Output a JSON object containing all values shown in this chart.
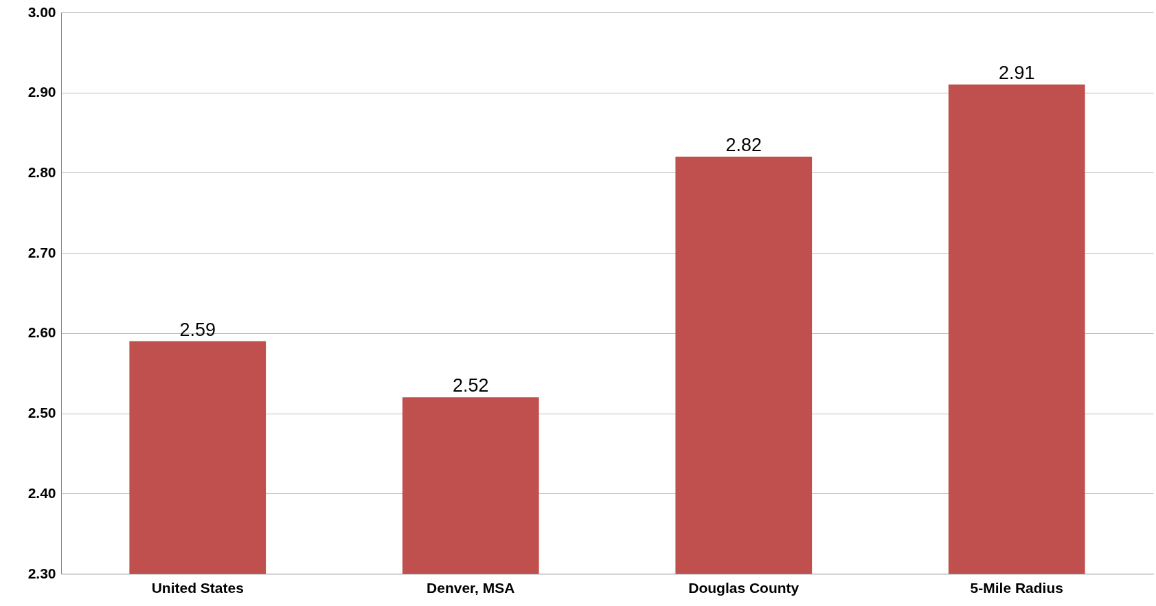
{
  "chart_data": {
    "type": "bar",
    "categories": [
      "United States",
      "Denver, MSA",
      "Douglas County",
      "5-Mile Radius"
    ],
    "values": [
      2.59,
      2.52,
      2.82,
      2.91
    ],
    "color": "#c0504d",
    "ylim": [
      2.3,
      3.0
    ],
    "yticks": [
      {
        "value": 2.3,
        "label": "2.30"
      },
      {
        "value": 2.4,
        "label": "2.40"
      },
      {
        "value": 2.5,
        "label": "2.50"
      },
      {
        "value": 2.6,
        "label": "2.60"
      },
      {
        "value": 2.7,
        "label": "2.70"
      },
      {
        "value": 2.8,
        "label": "2.80"
      },
      {
        "value": 2.9,
        "label": "2.90"
      },
      {
        "value": 3.0,
        "label": "3.00"
      }
    ],
    "grid": "y",
    "data_labels": true
  }
}
